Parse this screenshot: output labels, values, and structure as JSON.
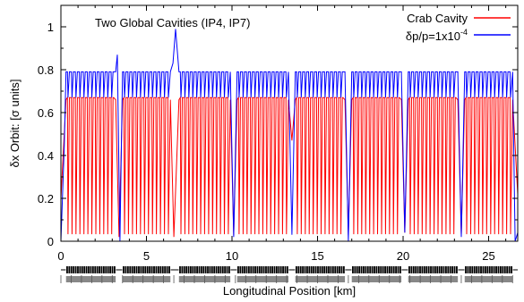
{
  "chart_data": {
    "type": "line",
    "annotation": "Two Global Cavities (IP4, IP7)",
    "xlabel": "Longitudinal Position [km]",
    "ylabel": "δx Orbit: [σ units]",
    "xlim": [
      0,
      26.7
    ],
    "ylim": [
      0,
      1.1
    ],
    "x_ticks": [
      "0",
      "5",
      "10",
      "15",
      "20",
      "25"
    ],
    "y_ticks": [
      "0",
      "0.2",
      "0.4",
      "0.6",
      "0.8",
      "1"
    ],
    "x_tick_values": [
      0,
      5,
      10,
      15,
      20,
      25
    ],
    "y_tick_values": [
      0,
      0.2,
      0.4,
      0.6,
      0.8,
      1.0
    ],
    "legend_placement": "top-right",
    "grid": false,
    "arcs_km": [
      [
        0.3,
        3.2
      ],
      [
        3.6,
        6.4
      ],
      [
        6.9,
        9.9
      ],
      [
        10.3,
        13.3
      ],
      [
        13.7,
        16.6
      ],
      [
        17.0,
        19.9
      ],
      [
        20.3,
        23.2
      ],
      [
        23.6,
        26.4
      ]
    ],
    "series": [
      {
        "name": "Crab Cavity",
        "color": "#ff0000",
        "arc_band": [
          0.02,
          0.67
        ],
        "oscillations_per_km": 8.5,
        "x": [
          0,
          0.3,
          3.2,
          3.4,
          3.6,
          6.4,
          6.6,
          6.9,
          9.9,
          10.1,
          10.3,
          13.3,
          13.5,
          13.7,
          16.6,
          16.8,
          17.0,
          19.9,
          20.1,
          20.3,
          23.2,
          23.4,
          23.6,
          26.4,
          26.7
        ],
        "y": [
          0.2,
          0.66,
          0.66,
          0.02,
          0.66,
          0.66,
          0.02,
          0.66,
          0.66,
          0.03,
          0.66,
          0.66,
          0.47,
          0.66,
          0.66,
          0.03,
          0.66,
          0.66,
          0.04,
          0.66,
          0.66,
          0.03,
          0.66,
          0.66,
          0.22
        ]
      },
      {
        "name": "δp/p=1x10",
        "name_superscript": "-4",
        "color": "#0000ff",
        "arc_band": [
          0.67,
          0.79
        ],
        "oscillations_per_km": 8.5,
        "x": [
          0,
          0.2,
          0.3,
          3.2,
          3.3,
          3.45,
          3.6,
          6.4,
          6.55,
          6.7,
          6.9,
          9.9,
          10.1,
          10.3,
          13.3,
          13.5,
          13.7,
          16.6,
          16.8,
          17.0,
          19.9,
          20.1,
          20.3,
          23.2,
          23.4,
          23.6,
          26.4,
          26.55,
          26.7
        ],
        "y": [
          0.0,
          0.45,
          0.79,
          0.79,
          0.87,
          0.0,
          0.79,
          0.79,
          0.83,
          0.99,
          0.79,
          0.79,
          0.02,
          0.79,
          0.79,
          0.03,
          0.79,
          0.79,
          0.0,
          0.79,
          0.79,
          0.04,
          0.79,
          0.79,
          0.02,
          0.79,
          0.79,
          0.0,
          0.04
        ]
      }
    ]
  }
}
